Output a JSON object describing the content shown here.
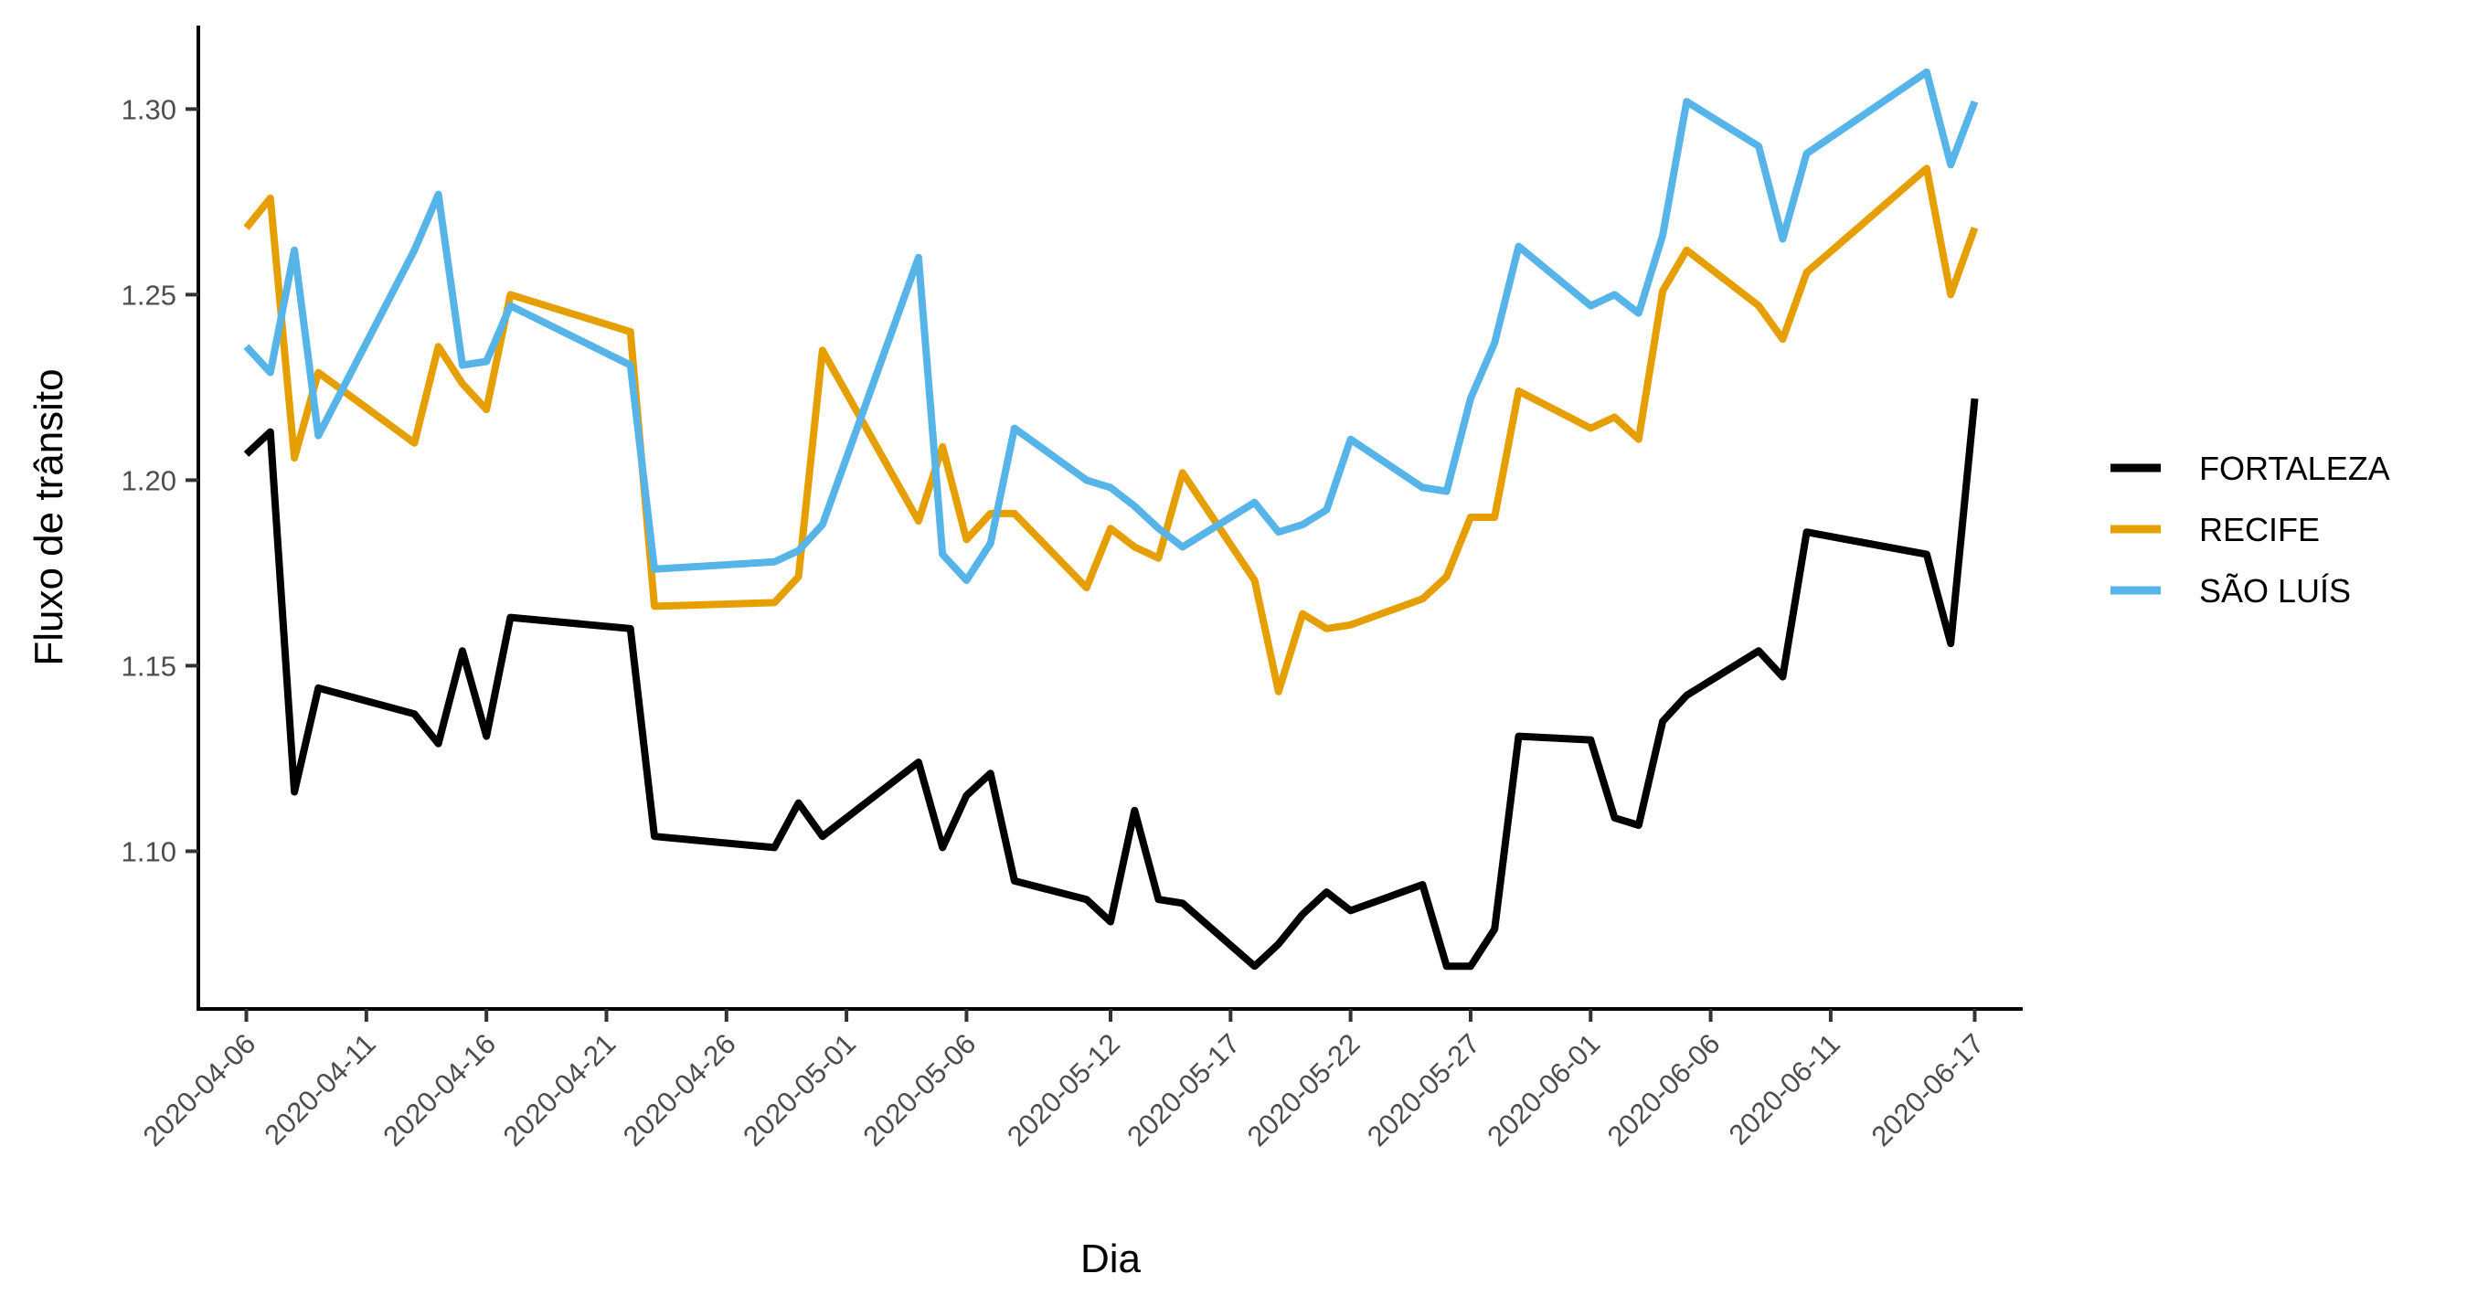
{
  "chart_data": {
    "type": "line",
    "title": "",
    "xlabel": "Dia",
    "ylabel": "Fluxo de trânsito",
    "xlim": [
      "2020-04-04",
      "2020-06-19"
    ],
    "ylim": [
      1.0575,
      1.3225
    ],
    "x_ticks": [
      "2020-04-06",
      "2020-04-11",
      "2020-04-16",
      "2020-04-21",
      "2020-04-26",
      "2020-05-01",
      "2020-05-06",
      "2020-05-12",
      "2020-05-17",
      "2020-05-22",
      "2020-05-27",
      "2020-06-01",
      "2020-06-06",
      "2020-06-11",
      "2020-06-17"
    ],
    "y_ticks": [
      1.1,
      1.15,
      1.2,
      1.25,
      1.3
    ],
    "y_tick_labels": [
      "1.10",
      "1.15",
      "1.20",
      "1.25",
      "1.30"
    ],
    "grid": false,
    "legend_position": "right",
    "series": [
      {
        "name": "FORTALEZA",
        "color": "#000000",
        "points": [
          [
            "2020-04-06",
            1.207
          ],
          [
            "2020-04-07",
            1.213
          ],
          [
            "2020-04-08",
            1.116
          ],
          [
            "2020-04-09",
            1.144
          ],
          [
            "2020-04-13",
            1.137
          ],
          [
            "2020-04-14",
            1.129
          ],
          [
            "2020-04-15",
            1.154
          ],
          [
            "2020-04-16",
            1.131
          ],
          [
            "2020-04-17",
            1.163
          ],
          [
            "2020-04-22",
            1.16
          ],
          [
            "2020-04-23",
            1.104
          ],
          [
            "2020-04-28",
            1.101
          ],
          [
            "2020-04-29",
            1.113
          ],
          [
            "2020-04-30",
            1.104
          ],
          [
            "2020-05-04",
            1.124
          ],
          [
            "2020-05-05",
            1.101
          ],
          [
            "2020-05-06",
            1.115
          ],
          [
            "2020-05-07",
            1.121
          ],
          [
            "2020-05-08",
            1.092
          ],
          [
            "2020-05-11",
            1.087
          ],
          [
            "2020-05-12",
            1.081
          ],
          [
            "2020-05-13",
            1.111
          ],
          [
            "2020-05-14",
            1.087
          ],
          [
            "2020-05-15",
            1.086
          ],
          [
            "2020-05-18",
            1.069
          ],
          [
            "2020-05-19",
            1.075
          ],
          [
            "2020-05-20",
            1.083
          ],
          [
            "2020-05-21",
            1.089
          ],
          [
            "2020-05-22",
            1.084
          ],
          [
            "2020-05-25",
            1.091
          ],
          [
            "2020-05-26",
            1.069
          ],
          [
            "2020-05-27",
            1.069
          ],
          [
            "2020-05-28",
            1.079
          ],
          [
            "2020-05-29",
            1.131
          ],
          [
            "2020-06-01",
            1.13
          ],
          [
            "2020-06-02",
            1.109
          ],
          [
            "2020-06-03",
            1.107
          ],
          [
            "2020-06-04",
            1.135
          ],
          [
            "2020-06-05",
            1.142
          ],
          [
            "2020-06-08",
            1.154
          ],
          [
            "2020-06-09",
            1.147
          ],
          [
            "2020-06-10",
            1.186
          ],
          [
            "2020-06-15",
            1.18
          ],
          [
            "2020-06-16",
            1.156
          ],
          [
            "2020-06-17",
            1.222
          ]
        ]
      },
      {
        "name": "RECIFE",
        "color": "#E69F00",
        "points": [
          [
            "2020-04-06",
            1.268
          ],
          [
            "2020-04-07",
            1.276
          ],
          [
            "2020-04-08",
            1.206
          ],
          [
            "2020-04-09",
            1.229
          ],
          [
            "2020-04-13",
            1.21
          ],
          [
            "2020-04-14",
            1.236
          ],
          [
            "2020-04-15",
            1.226
          ],
          [
            "2020-04-16",
            1.219
          ],
          [
            "2020-04-17",
            1.25
          ],
          [
            "2020-04-22",
            1.24
          ],
          [
            "2020-04-23",
            1.166
          ],
          [
            "2020-04-28",
            1.167
          ],
          [
            "2020-04-29",
            1.174
          ],
          [
            "2020-04-30",
            1.235
          ],
          [
            "2020-05-04",
            1.189
          ],
          [
            "2020-05-05",
            1.209
          ],
          [
            "2020-05-06",
            1.184
          ],
          [
            "2020-05-07",
            1.191
          ],
          [
            "2020-05-08",
            1.191
          ],
          [
            "2020-05-11",
            1.171
          ],
          [
            "2020-05-12",
            1.187
          ],
          [
            "2020-05-13",
            1.182
          ],
          [
            "2020-05-14",
            1.179
          ],
          [
            "2020-05-15",
            1.202
          ],
          [
            "2020-05-18",
            1.173
          ],
          [
            "2020-05-19",
            1.143
          ],
          [
            "2020-05-20",
            1.164
          ],
          [
            "2020-05-21",
            1.16
          ],
          [
            "2020-05-22",
            1.161
          ],
          [
            "2020-05-25",
            1.168
          ],
          [
            "2020-05-26",
            1.174
          ],
          [
            "2020-05-27",
            1.19
          ],
          [
            "2020-05-28",
            1.19
          ],
          [
            "2020-05-29",
            1.224
          ],
          [
            "2020-06-01",
            1.214
          ],
          [
            "2020-06-02",
            1.217
          ],
          [
            "2020-06-03",
            1.211
          ],
          [
            "2020-06-04",
            1.251
          ],
          [
            "2020-06-05",
            1.262
          ],
          [
            "2020-06-08",
            1.247
          ],
          [
            "2020-06-09",
            1.238
          ],
          [
            "2020-06-10",
            1.256
          ],
          [
            "2020-06-15",
            1.284
          ],
          [
            "2020-06-16",
            1.25
          ],
          [
            "2020-06-17",
            1.268
          ]
        ]
      },
      {
        "name": "SÃO LUÍS",
        "color": "#56B4E9",
        "points": [
          [
            "2020-04-06",
            1.236
          ],
          [
            "2020-04-07",
            1.229
          ],
          [
            "2020-04-08",
            1.262
          ],
          [
            "2020-04-09",
            1.212
          ],
          [
            "2020-04-13",
            1.262
          ],
          [
            "2020-04-14",
            1.277
          ],
          [
            "2020-04-15",
            1.231
          ],
          [
            "2020-04-16",
            1.232
          ],
          [
            "2020-04-17",
            1.247
          ],
          [
            "2020-04-22",
            1.231
          ],
          [
            "2020-04-23",
            1.176
          ],
          [
            "2020-04-28",
            1.178
          ],
          [
            "2020-04-29",
            1.181
          ],
          [
            "2020-04-30",
            1.188
          ],
          [
            "2020-05-04",
            1.26
          ],
          [
            "2020-05-05",
            1.18
          ],
          [
            "2020-05-06",
            1.173
          ],
          [
            "2020-05-07",
            1.183
          ],
          [
            "2020-05-08",
            1.214
          ],
          [
            "2020-05-11",
            1.2
          ],
          [
            "2020-05-12",
            1.198
          ],
          [
            "2020-05-13",
            1.193
          ],
          [
            "2020-05-14",
            1.187
          ],
          [
            "2020-05-15",
            1.182
          ],
          [
            "2020-05-18",
            1.194
          ],
          [
            "2020-05-19",
            1.186
          ],
          [
            "2020-05-20",
            1.188
          ],
          [
            "2020-05-21",
            1.192
          ],
          [
            "2020-05-22",
            1.211
          ],
          [
            "2020-05-25",
            1.198
          ],
          [
            "2020-05-26",
            1.197
          ],
          [
            "2020-05-27",
            1.222
          ],
          [
            "2020-05-28",
            1.237
          ],
          [
            "2020-05-29",
            1.263
          ],
          [
            "2020-06-01",
            1.247
          ],
          [
            "2020-06-02",
            1.25
          ],
          [
            "2020-06-03",
            1.245
          ],
          [
            "2020-06-04",
            1.266
          ],
          [
            "2020-06-05",
            1.302
          ],
          [
            "2020-06-08",
            1.29
          ],
          [
            "2020-06-09",
            1.265
          ],
          [
            "2020-06-10",
            1.288
          ],
          [
            "2020-06-15",
            1.31
          ],
          [
            "2020-06-16",
            1.285
          ],
          [
            "2020-06-17",
            1.302
          ]
        ]
      }
    ]
  }
}
